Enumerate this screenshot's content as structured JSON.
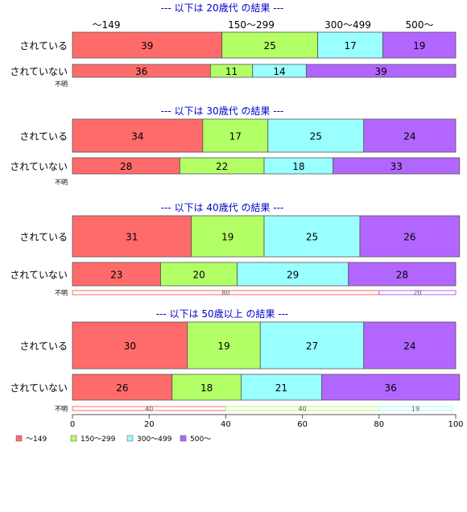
{
  "chart_data": {
    "type": "bar",
    "orientation": "horizontal",
    "stacked": "percent",
    "xlim": [
      0,
      100
    ],
    "x_ticks": [
      "0",
      "20",
      "40",
      "60",
      "80",
      "100"
    ],
    "top_category_labels": [
      "～149",
      "150～299",
      "300～499",
      "500～"
    ],
    "legend": {
      "placement": "bottom-left",
      "entries": [
        "～149",
        "150～299",
        "300～499",
        "500～"
      ]
    },
    "colors": [
      "#ff6b6b",
      "#b3ff66",
      "#99ffff",
      "#b266ff"
    ],
    "groups": [
      {
        "title": "--- 以下は 20歳代 の結果 ---",
        "rows": [
          {
            "label": "されている",
            "values": [
              39,
              25,
              17,
              19
            ]
          },
          {
            "label": "されていない",
            "values": [
              36,
              11,
              14,
              39
            ]
          },
          {
            "label": "不明",
            "values": [],
            "labels": []
          }
        ]
      },
      {
        "title": "--- 以下は 30歳代 の結果 ---",
        "rows": [
          {
            "label": "されている",
            "values": [
              34,
              17,
              25,
              24
            ]
          },
          {
            "label": "されていない",
            "values": [
              28,
              22,
              18,
              33
            ]
          },
          {
            "label": "不明",
            "values": [],
            "labels": []
          }
        ]
      },
      {
        "title": "--- 以下は 40歳代 の結果 ---",
        "rows": [
          {
            "label": "されている",
            "values": [
              31,
              19,
              25,
              26
            ]
          },
          {
            "label": "されていない",
            "values": [
              23,
              20,
              29,
              28
            ]
          },
          {
            "label": "不明",
            "values": [
              80,
              0,
              0,
              20
            ],
            "labels": [
              "80",
              "",
              "",
              "20"
            ]
          }
        ]
      },
      {
        "title": "--- 以下は 50歳以上 の結果 ---",
        "rows": [
          {
            "label": "されている",
            "values": [
              30,
              19,
              27,
              24
            ]
          },
          {
            "label": "されていない",
            "values": [
              26,
              18,
              21,
              36
            ]
          },
          {
            "label": "不明",
            "values": [
              40,
              40,
              19,
              0
            ],
            "labels": [
              "40",
              "40",
              "19",
              ""
            ]
          }
        ]
      }
    ]
  }
}
